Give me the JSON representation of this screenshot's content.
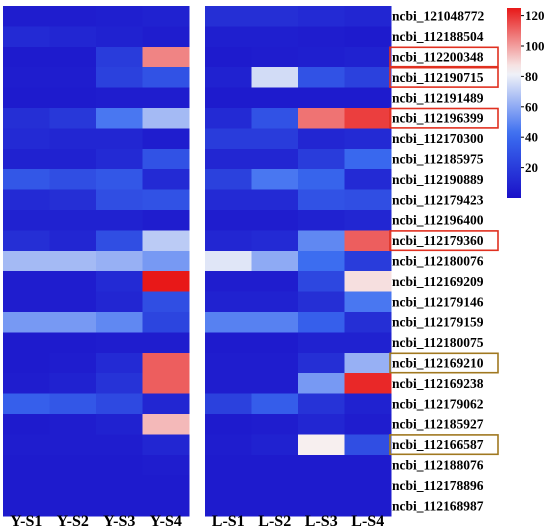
{
  "chart_data": {
    "type": "heatmap",
    "groups": [
      {
        "columns": [
          "Y-S1",
          "Y-S2",
          "Y-S3",
          "Y-S4"
        ]
      },
      {
        "columns": [
          "L-S1",
          "L-S2",
          "L-S3",
          "L-S4"
        ]
      }
    ],
    "columns": [
      "Y-S1",
      "Y-S2",
      "Y-S3",
      "Y-S4",
      "L-S1",
      "L-S2",
      "L-S3",
      "L-S4"
    ],
    "rows": [
      "ncbi_121048772",
      "ncbi_112188504",
      "ncbi_112200348",
      "ncbi_112190715",
      "ncbi_112191489",
      "ncbi_112196399",
      "ncbi_112170300",
      "ncbi_112185975",
      "ncbi_112190889",
      "ncbi_112179423",
      "ncbi_112196400",
      "ncbi_112179360",
      "ncbi_112180076",
      "ncbi_112169209",
      "ncbi_112179146",
      "ncbi_112179159",
      "ncbi_112180075",
      "ncbi_112169210",
      "ncbi_112169238",
      "ncbi_112179062",
      "ncbi_112185927",
      "ncbi_112166587",
      "ncbi_112188076",
      "ncbi_112178896",
      "ncbi_112168987"
    ],
    "values": [
      [
        6,
        6,
        7,
        8,
        14,
        14,
        12,
        10
      ],
      [
        12,
        10,
        8,
        6,
        7,
        7,
        6,
        5
      ],
      [
        5,
        5,
        20,
        105,
        5,
        6,
        7,
        8
      ],
      [
        6,
        6,
        22,
        30,
        8,
        75,
        30,
        22
      ],
      [
        5,
        5,
        6,
        6,
        5,
        5,
        5,
        5
      ],
      [
        14,
        18,
        45,
        65,
        12,
        30,
        108,
        118
      ],
      [
        12,
        10,
        10,
        6,
        20,
        20,
        10,
        12
      ],
      [
        8,
        8,
        12,
        30,
        10,
        10,
        20,
        40
      ],
      [
        32,
        28,
        32,
        12,
        22,
        45,
        38,
        12
      ],
      [
        12,
        14,
        28,
        30,
        12,
        12,
        30,
        28
      ],
      [
        8,
        8,
        8,
        6,
        6,
        6,
        8,
        10
      ],
      [
        14,
        10,
        28,
        70,
        10,
        12,
        50,
        112
      ],
      [
        65,
        65,
        62,
        55,
        78,
        60,
        42,
        20
      ],
      [
        6,
        6,
        12,
        125,
        6,
        6,
        25,
        88
      ],
      [
        6,
        6,
        10,
        28,
        8,
        8,
        14,
        45
      ],
      [
        55,
        55,
        50,
        24,
        48,
        48,
        36,
        14
      ],
      [
        5,
        5,
        6,
        6,
        5,
        5,
        8,
        8
      ],
      [
        5,
        6,
        12,
        112,
        6,
        6,
        14,
        62
      ],
      [
        6,
        8,
        16,
        112,
        6,
        6,
        55,
        122
      ],
      [
        36,
        32,
        26,
        10,
        22,
        35,
        16,
        8
      ],
      [
        5,
        6,
        8,
        95,
        5,
        6,
        10,
        6
      ],
      [
        6,
        6,
        6,
        10,
        6,
        8,
        85,
        28
      ],
      [
        5,
        5,
        5,
        6,
        5,
        5,
        5,
        5
      ],
      [
        5,
        5,
        5,
        5,
        5,
        5,
        5,
        5
      ],
      [
        5,
        5,
        5,
        5,
        5,
        5,
        5,
        5
      ]
    ],
    "highlighted_rows": [
      {
        "label": "ncbi_112200348",
        "color": "#e03020"
      },
      {
        "label": "ncbi_112190715",
        "color": "#e03020"
      },
      {
        "label": "ncbi_112196399",
        "color": "#e03020"
      },
      {
        "label": "ncbi_112179360",
        "color": "#e03020"
      },
      {
        "label": "ncbi_112169210",
        "color": "#a07820"
      },
      {
        "label": "ncbi_112166587",
        "color": "#a07820"
      }
    ],
    "colorscale": {
      "min": 0,
      "max": 125,
      "stops": [
        "#1a10c8",
        "#3a6cf0",
        "#f8f8f8",
        "#e81818"
      ],
      "ticks": [
        20,
        40,
        60,
        80,
        100,
        120
      ]
    },
    "legend": "right"
  }
}
